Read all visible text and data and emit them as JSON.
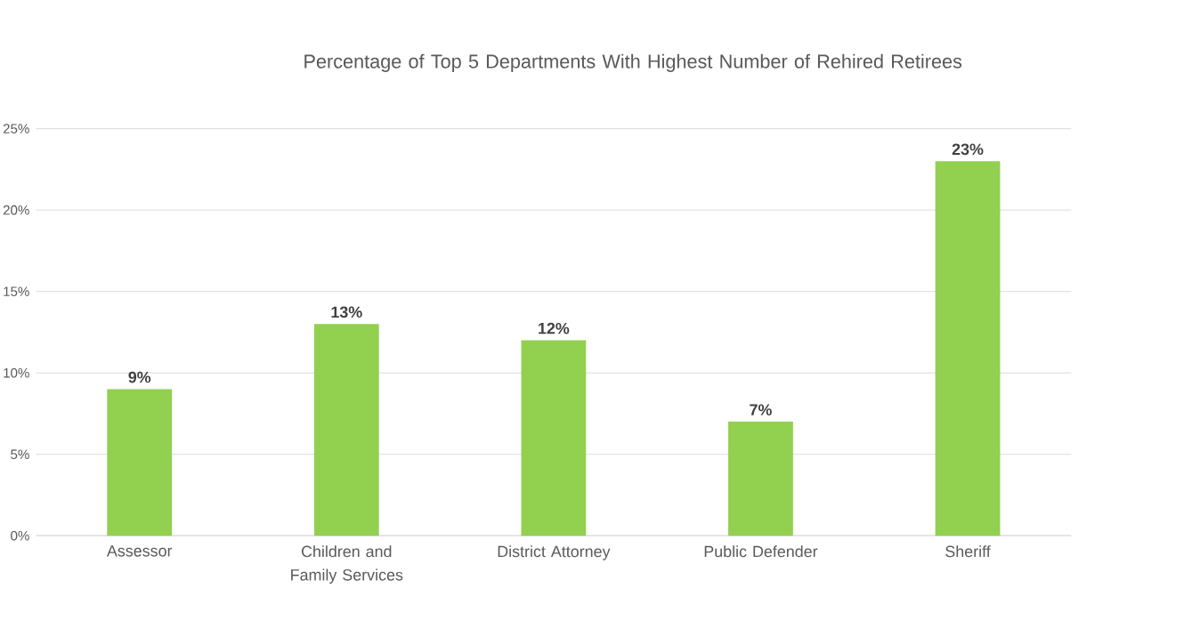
{
  "chart_data": {
    "type": "bar",
    "title": "Percentage of Top 5 Departments With Highest Number of Rehired Retirees",
    "categories": [
      "Assessor",
      "Children and Family Services",
      "District Attorney",
      "Public Defender",
      "Sheriff"
    ],
    "values": [
      9,
      13,
      12,
      7,
      23
    ],
    "value_labels": [
      "9%",
      "13%",
      "12%",
      "7%",
      "23%"
    ],
    "color": "#92d050",
    "ylim": [
      0,
      25
    ],
    "yticks": [
      {
        "value": 0,
        "label": "0%"
      },
      {
        "value": 5,
        "label": "5%"
      },
      {
        "value": 10,
        "label": "10%"
      },
      {
        "value": 15,
        "label": "15%"
      },
      {
        "value": 20,
        "label": "20%"
      },
      {
        "value": 25,
        "label": "25%"
      }
    ],
    "grid": "y"
  }
}
